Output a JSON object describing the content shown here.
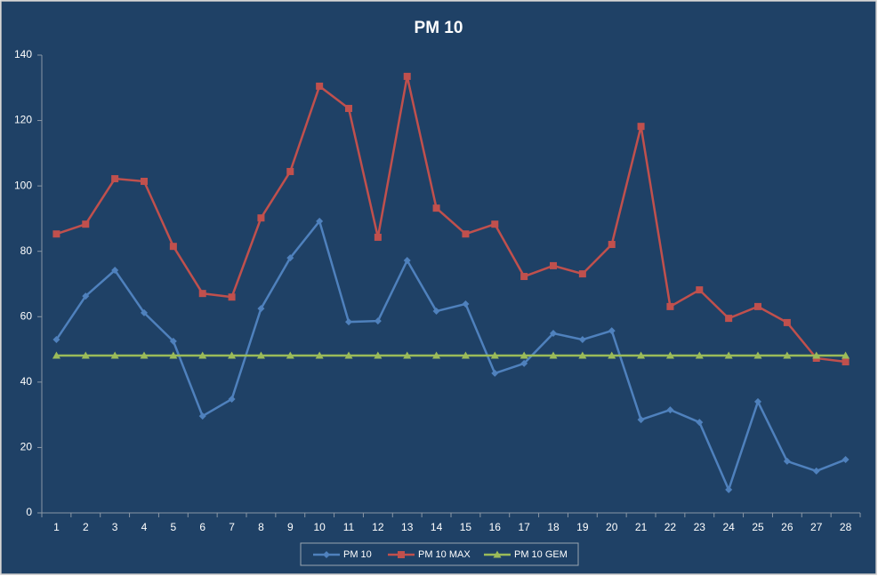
{
  "chart_data": {
    "type": "line",
    "title": "PM 10",
    "categories": [
      1,
      2,
      3,
      4,
      5,
      6,
      7,
      8,
      9,
      10,
      11,
      12,
      13,
      14,
      15,
      16,
      17,
      18,
      19,
      20,
      21,
      22,
      23,
      24,
      25,
      26,
      27,
      28
    ],
    "series": [
      {
        "name": "PM 10",
        "color": "#4f81bd",
        "marker": "diamond",
        "values": [
          53,
          66.3,
          74.2,
          61.2,
          52.5,
          29.6,
          34.8,
          62.5,
          78,
          89.2,
          58.4,
          58.7,
          77.2,
          61.7,
          63.9,
          42.7,
          45.7,
          54.9,
          53,
          55.7,
          28.5,
          31.5,
          27.7,
          7.1,
          34,
          15.8,
          12.8,
          16.3
        ]
      },
      {
        "name": "PM 10 MAX",
        "color": "#c0504d",
        "marker": "square",
        "values": [
          85.3,
          88.3,
          102.2,
          101.4,
          81.5,
          67.1,
          66,
          90.2,
          104.4,
          130.5,
          123.7,
          84.3,
          133.5,
          93.2,
          85.3,
          88.3,
          72.3,
          75.6,
          73.1,
          82.1,
          118.2,
          63.1,
          68.2,
          59.5,
          63.1,
          58.2,
          47.3,
          46.2
        ]
      },
      {
        "name": "PM 10 GEM",
        "color": "#9bbb59",
        "marker": "triangle",
        "values": [
          48.1,
          48.1,
          48.1,
          48.1,
          48.1,
          48.1,
          48.1,
          48.1,
          48.1,
          48.1,
          48.1,
          48.1,
          48.1,
          48.1,
          48.1,
          48.1,
          48.1,
          48.1,
          48.1,
          48.1,
          48.1,
          48.1,
          48.1,
          48.1,
          48.1,
          48.1,
          48.1,
          48.1
        ]
      }
    ],
    "ylim": [
      0,
      140
    ],
    "yticks": [
      0,
      20,
      40,
      60,
      80,
      100,
      120,
      140
    ],
    "grid": false,
    "legend": "bottom"
  }
}
